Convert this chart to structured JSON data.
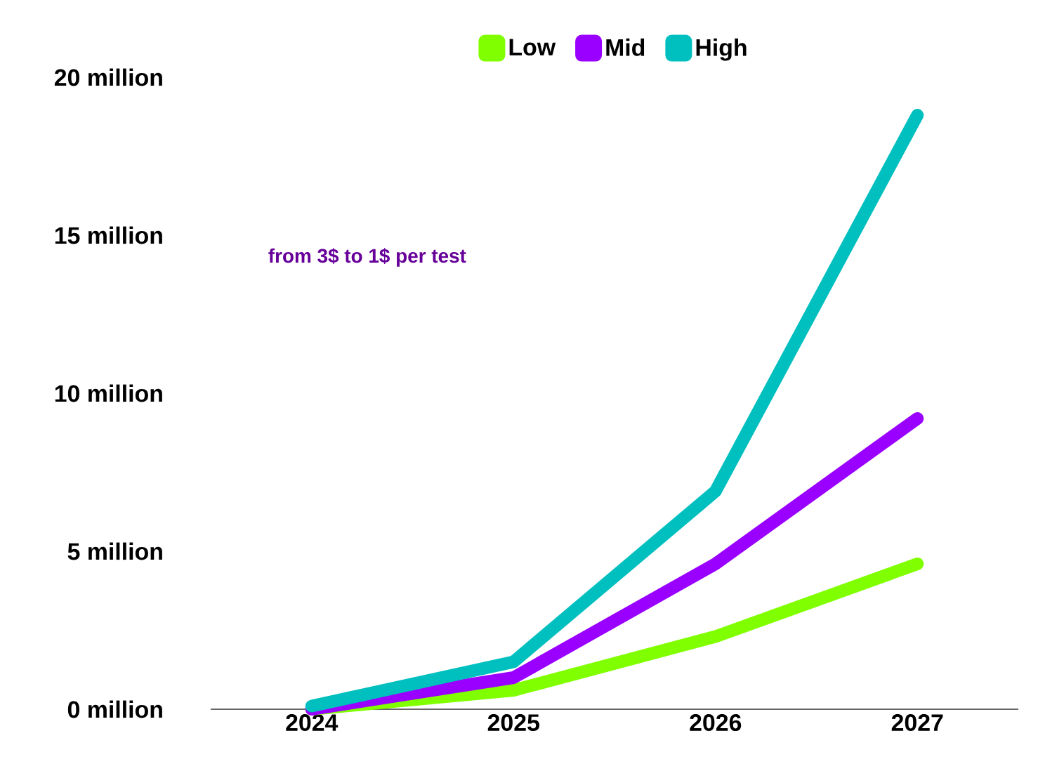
{
  "chart_data": {
    "type": "line",
    "categories": [
      "2024",
      "2025",
      "2026",
      "2027"
    ],
    "series": [
      {
        "name": "Low",
        "color": "#80ff00",
        "values": [
          0,
          0.6,
          2.3,
          4.6
        ]
      },
      {
        "name": "Mid",
        "color": "#9900ff",
        "values": [
          0,
          1.0,
          4.6,
          9.2
        ]
      },
      {
        "name": "High",
        "color": "#00bfbf",
        "values": [
          0.1,
          1.5,
          6.9,
          18.8
        ]
      }
    ],
    "ylim": [
      0,
      20
    ],
    "yticks": [
      {
        "value": 0,
        "label": "0 million"
      },
      {
        "value": 5,
        "label": "5 million"
      },
      {
        "value": 10,
        "label": "10 million"
      },
      {
        "value": 15,
        "label": "15 million"
      },
      {
        "value": 20,
        "label": "20 million"
      }
    ],
    "annotations": [
      "from 3$ to 1$ per test"
    ],
    "legend": "top",
    "grid": false,
    "marker": "none",
    "line_style": "solid"
  }
}
